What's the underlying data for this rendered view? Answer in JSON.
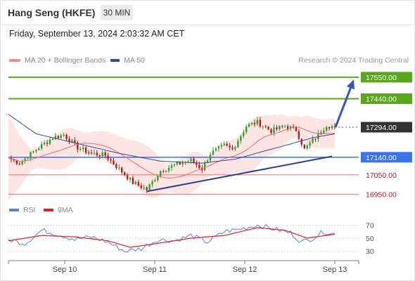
{
  "header": {
    "title": "Hang Seng (HKFE)",
    "timeframe": "30 MIN",
    "timestamp": "Friday, September 13, 2024 2:03:32 AM CET"
  },
  "legend": {
    "items": [
      {
        "label": "MA 20 + Bollinger Bands",
        "color": "#f08c8c"
      },
      {
        "label": "MA 50",
        "color": "#2c4f8f"
      }
    ],
    "credit": "Research © 2024 Trading Central"
  },
  "rsi_legend": {
    "items": [
      {
        "label": "RSI",
        "color": "#5b7fd6"
      },
      {
        "label": "9MA",
        "color": "#e02020"
      }
    ]
  },
  "colors": {
    "up": "#2e9e2e",
    "down": "#b01c1c",
    "resistance": "#5aa61c",
    "support": "#3a74e8",
    "target_line": "#e86a6a",
    "trend": "#2c3f8f",
    "forecast_arrow": "#2f5db5",
    "price_box": "#333333"
  },
  "chart_data": [
    {
      "type": "line",
      "title": "",
      "x_ticks": [
        "Sep 10",
        "Sep 11",
        "Sep 12",
        "Sep 13"
      ],
      "ylim": [
        16920,
        17600
      ],
      "levels": [
        {
          "value": "17550.00",
          "kind": "resistance"
        },
        {
          "value": "17440.00",
          "kind": "resistance"
        },
        {
          "value": "17294.00",
          "kind": "current"
        },
        {
          "value": "17140.00",
          "kind": "support"
        },
        {
          "value": "17050.00",
          "kind": "target"
        },
        {
          "value": "16950.00",
          "kind": "target"
        }
      ],
      "price_anchors": [
        {
          "t": 0,
          "v": 17135
        },
        {
          "t": 4,
          "v": 17110
        },
        {
          "t": 10,
          "v": 17180
        },
        {
          "t": 16,
          "v": 17240
        },
        {
          "t": 20,
          "v": 17255
        },
        {
          "t": 25,
          "v": 17190
        },
        {
          "t": 30,
          "v": 17160
        },
        {
          "t": 35,
          "v": 17150
        },
        {
          "t": 40,
          "v": 17080
        },
        {
          "t": 45,
          "v": 17010
        },
        {
          "t": 50,
          "v": 16975
        },
        {
          "t": 55,
          "v": 17070
        },
        {
          "t": 60,
          "v": 17100
        },
        {
          "t": 66,
          "v": 17125
        },
        {
          "t": 70,
          "v": 17080
        },
        {
          "t": 73,
          "v": 17160
        },
        {
          "t": 78,
          "v": 17200
        },
        {
          "t": 81,
          "v": 17180
        },
        {
          "t": 86,
          "v": 17300
        },
        {
          "t": 90,
          "v": 17320
        },
        {
          "t": 95,
          "v": 17275
        },
        {
          "t": 100,
          "v": 17300
        },
        {
          "t": 104,
          "v": 17280
        },
        {
          "t": 107,
          "v": 17180
        },
        {
          "t": 111,
          "v": 17240
        },
        {
          "t": 115,
          "v": 17305
        },
        {
          "t": 118,
          "v": 17294
        }
      ],
      "ma50_anchors": [
        {
          "t": 0,
          "v": 17360
        },
        {
          "t": 10,
          "v": 17260
        },
        {
          "t": 25,
          "v": 17210
        },
        {
          "t": 40,
          "v": 17160
        },
        {
          "t": 55,
          "v": 17120
        },
        {
          "t": 70,
          "v": 17110
        },
        {
          "t": 82,
          "v": 17130
        },
        {
          "t": 92,
          "v": 17170
        },
        {
          "t": 100,
          "v": 17200
        },
        {
          "t": 110,
          "v": 17240
        },
        {
          "t": 118,
          "v": 17260
        }
      ],
      "trendline": [
        {
          "t": 50,
          "v": 16965
        },
        {
          "t": 117,
          "v": 17145
        }
      ],
      "forecast": {
        "from": 17294,
        "to": 17550
      },
      "bars": 118
    },
    {
      "type": "line",
      "title": "",
      "series": [
        {
          "name": "RSI"
        },
        {
          "name": "9MA"
        }
      ],
      "ylim": [
        20,
        80
      ],
      "y_ticks": [
        "70",
        "50",
        "30"
      ],
      "rsi_anchors": [
        {
          "t": 0,
          "v": 48
        },
        {
          "t": 6,
          "v": 42
        },
        {
          "t": 12,
          "v": 62
        },
        {
          "t": 18,
          "v": 56
        },
        {
          "t": 24,
          "v": 48
        },
        {
          "t": 30,
          "v": 52
        },
        {
          "t": 36,
          "v": 44
        },
        {
          "t": 42,
          "v": 30
        },
        {
          "t": 48,
          "v": 34
        },
        {
          "t": 54,
          "v": 48
        },
        {
          "t": 60,
          "v": 46
        },
        {
          "t": 66,
          "v": 54
        },
        {
          "t": 72,
          "v": 44
        },
        {
          "t": 78,
          "v": 60
        },
        {
          "t": 84,
          "v": 64
        },
        {
          "t": 90,
          "v": 70
        },
        {
          "t": 96,
          "v": 64
        },
        {
          "t": 102,
          "v": 58
        },
        {
          "t": 106,
          "v": 44
        },
        {
          "t": 110,
          "v": 50
        },
        {
          "t": 114,
          "v": 60
        },
        {
          "t": 118,
          "v": 56
        }
      ],
      "ma_anchors": [
        {
          "t": 0,
          "v": 46
        },
        {
          "t": 12,
          "v": 54
        },
        {
          "t": 24,
          "v": 52
        },
        {
          "t": 36,
          "v": 46
        },
        {
          "t": 44,
          "v": 36
        },
        {
          "t": 54,
          "v": 42
        },
        {
          "t": 66,
          "v": 50
        },
        {
          "t": 78,
          "v": 54
        },
        {
          "t": 90,
          "v": 66
        },
        {
          "t": 100,
          "v": 62
        },
        {
          "t": 108,
          "v": 50
        },
        {
          "t": 118,
          "v": 56
        }
      ]
    }
  ]
}
